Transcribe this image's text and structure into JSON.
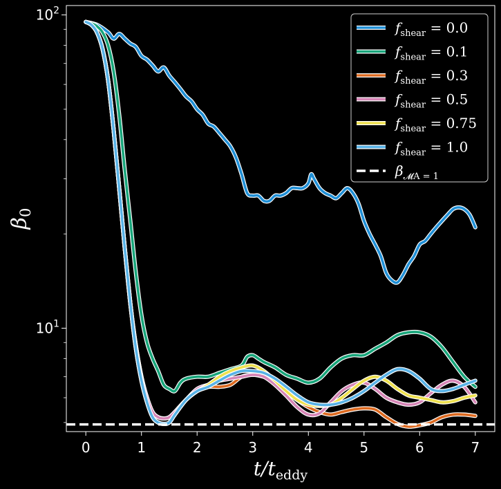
{
  "chart_data": {
    "type": "line",
    "xlabel_main": "t/t",
    "xlabel_sub": "eddy",
    "ylabel_main": "β",
    "ylabel_sub": "0",
    "xlim": [
      -0.35,
      7.35
    ],
    "ylim_log10": [
      0.67,
      2.03
    ],
    "yscale": "log",
    "grid": false,
    "legend_placement": "top-right",
    "x_ticks": [
      0,
      1,
      2,
      3,
      4,
      5,
      6,
      7
    ],
    "x_tick_labels": [
      "0",
      "1",
      "2",
      "3",
      "4",
      "5",
      "6",
      "7"
    ],
    "y_ticks": [
      10,
      100
    ],
    "y_tick_labels": [
      {
        "base": "10",
        "exp": "1"
      },
      {
        "base": "10",
        "exp": "2"
      }
    ],
    "y_minor_ticks": [
      5,
      6,
      7,
      8,
      9,
      20,
      30,
      40,
      50,
      60,
      70,
      80,
      90
    ],
    "series": [
      {
        "name": "f_shear = 0.0",
        "label_main": "f",
        "label_sub": "shear",
        "label_value": " = 0.0",
        "color": "#1f8fd6",
        "points": [
          [
            0,
            95
          ],
          [
            0.2,
            93
          ],
          [
            0.4,
            88
          ],
          [
            0.5,
            84
          ],
          [
            0.6,
            87
          ],
          [
            0.7,
            84
          ],
          [
            0.8,
            81
          ],
          [
            0.9,
            79
          ],
          [
            1.0,
            74
          ],
          [
            1.1,
            72
          ],
          [
            1.2,
            69
          ],
          [
            1.3,
            66
          ],
          [
            1.4,
            68
          ],
          [
            1.5,
            64
          ],
          [
            1.6,
            61
          ],
          [
            1.7,
            58
          ],
          [
            1.8,
            55
          ],
          [
            1.9,
            53
          ],
          [
            2.0,
            50
          ],
          [
            2.1,
            48
          ],
          [
            2.2,
            45
          ],
          [
            2.3,
            44
          ],
          [
            2.4,
            42
          ],
          [
            2.5,
            40
          ],
          [
            2.6,
            38
          ],
          [
            2.7,
            35
          ],
          [
            2.8,
            31
          ],
          [
            2.9,
            27
          ],
          [
            3.0,
            26.5
          ],
          [
            3.1,
            26.5
          ],
          [
            3.2,
            25.5
          ],
          [
            3.3,
            25.5
          ],
          [
            3.4,
            26.5
          ],
          [
            3.5,
            26.5
          ],
          [
            3.6,
            27
          ],
          [
            3.7,
            28
          ],
          [
            3.8,
            28
          ],
          [
            3.9,
            28
          ],
          [
            4.0,
            29
          ],
          [
            4.05,
            31
          ],
          [
            4.1,
            30
          ],
          [
            4.2,
            28
          ],
          [
            4.3,
            27
          ],
          [
            4.4,
            26.5
          ],
          [
            4.5,
            26
          ],
          [
            4.6,
            27
          ],
          [
            4.7,
            28
          ],
          [
            4.8,
            27
          ],
          [
            4.9,
            25
          ],
          [
            5.0,
            22
          ],
          [
            5.1,
            20
          ],
          [
            5.2,
            18.5
          ],
          [
            5.3,
            17
          ],
          [
            5.4,
            15
          ],
          [
            5.5,
            14.2
          ],
          [
            5.6,
            14.0
          ],
          [
            5.7,
            14.8
          ],
          [
            5.8,
            16
          ],
          [
            5.9,
            17
          ],
          [
            6.0,
            18.5
          ],
          [
            6.1,
            19
          ],
          [
            6.2,
            20
          ],
          [
            6.3,
            21
          ],
          [
            6.4,
            22
          ],
          [
            6.5,
            23
          ],
          [
            6.6,
            24
          ],
          [
            6.7,
            24.3
          ],
          [
            6.8,
            24
          ],
          [
            6.9,
            23
          ],
          [
            7.0,
            21
          ]
        ]
      },
      {
        "name": "f_shear = 0.1",
        "label_main": "f",
        "label_sub": "shear",
        "label_value": " = 0.1",
        "color": "#18a57a",
        "points": [
          [
            0,
            95
          ],
          [
            0.1,
            94
          ],
          [
            0.2,
            92
          ],
          [
            0.3,
            88
          ],
          [
            0.4,
            80
          ],
          [
            0.5,
            66
          ],
          [
            0.6,
            48
          ],
          [
            0.7,
            32
          ],
          [
            0.8,
            22
          ],
          [
            0.9,
            15
          ],
          [
            1.0,
            11
          ],
          [
            1.1,
            9
          ],
          [
            1.2,
            8.0
          ],
          [
            1.3,
            7.3
          ],
          [
            1.4,
            6.6
          ],
          [
            1.5,
            6.4
          ],
          [
            1.6,
            6.3
          ],
          [
            1.7,
            6.7
          ],
          [
            1.8,
            6.9
          ],
          [
            2.0,
            7.0
          ],
          [
            2.2,
            7.0
          ],
          [
            2.4,
            7.2
          ],
          [
            2.6,
            7.4
          ],
          [
            2.8,
            7.6
          ],
          [
            2.9,
            8.1
          ],
          [
            3.0,
            8.2
          ],
          [
            3.1,
            8.0
          ],
          [
            3.2,
            7.8
          ],
          [
            3.4,
            7.5
          ],
          [
            3.6,
            7.1
          ],
          [
            3.8,
            6.9
          ],
          [
            4.0,
            6.7
          ],
          [
            4.2,
            6.9
          ],
          [
            4.4,
            7.5
          ],
          [
            4.6,
            8.0
          ],
          [
            4.8,
            8.2
          ],
          [
            5.0,
            8.2
          ],
          [
            5.2,
            8.6
          ],
          [
            5.4,
            9.0
          ],
          [
            5.6,
            9.5
          ],
          [
            5.8,
            9.7
          ],
          [
            6.0,
            9.7
          ],
          [
            6.2,
            9.4
          ],
          [
            6.4,
            8.7
          ],
          [
            6.6,
            7.8
          ],
          [
            6.8,
            7.0
          ],
          [
            7.0,
            6.5
          ]
        ]
      },
      {
        "name": "f_shear = 0.3",
        "label_main": "f",
        "label_sub": "shear",
        "label_value": " = 0.3",
        "color": "#dd6a20",
        "points": [
          [
            0,
            95
          ],
          [
            0.1,
            93
          ],
          [
            0.2,
            88
          ],
          [
            0.3,
            78
          ],
          [
            0.4,
            62
          ],
          [
            0.5,
            43
          ],
          [
            0.6,
            28
          ],
          [
            0.7,
            18
          ],
          [
            0.8,
            12
          ],
          [
            0.9,
            8.8
          ],
          [
            1.0,
            7.0
          ],
          [
            1.1,
            6.0
          ],
          [
            1.2,
            5.4
          ],
          [
            1.3,
            5.2
          ],
          [
            1.4,
            5.15
          ],
          [
            1.5,
            5.2
          ],
          [
            1.6,
            5.4
          ],
          [
            1.8,
            5.9
          ],
          [
            2.0,
            6.3
          ],
          [
            2.2,
            6.5
          ],
          [
            2.4,
            6.5
          ],
          [
            2.6,
            6.6
          ],
          [
            2.8,
            7.0
          ],
          [
            3.0,
            7.1
          ],
          [
            3.2,
            7.0
          ],
          [
            3.4,
            6.8
          ],
          [
            3.6,
            6.3
          ],
          [
            3.8,
            5.9
          ],
          [
            4.0,
            5.6
          ],
          [
            4.2,
            5.4
          ],
          [
            4.4,
            5.3
          ],
          [
            4.6,
            5.4
          ],
          [
            4.8,
            5.5
          ],
          [
            5.0,
            5.55
          ],
          [
            5.2,
            5.5
          ],
          [
            5.4,
            5.2
          ],
          [
            5.6,
            4.95
          ],
          [
            5.8,
            4.85
          ],
          [
            6.0,
            4.9
          ],
          [
            6.2,
            5.0
          ],
          [
            6.4,
            5.2
          ],
          [
            6.6,
            5.3
          ],
          [
            6.8,
            5.3
          ],
          [
            7.0,
            5.25
          ]
        ]
      },
      {
        "name": "f_shear = 0.5",
        "label_main": "f",
        "label_sub": "shear",
        "label_value": " = 0.5",
        "color": "#d685b6",
        "points": [
          [
            0,
            95
          ],
          [
            0.1,
            93
          ],
          [
            0.2,
            88
          ],
          [
            0.3,
            78
          ],
          [
            0.4,
            62
          ],
          [
            0.5,
            43
          ],
          [
            0.6,
            28
          ],
          [
            0.7,
            18
          ],
          [
            0.8,
            12
          ],
          [
            0.9,
            8.8
          ],
          [
            1.0,
            7.0
          ],
          [
            1.1,
            6.0
          ],
          [
            1.2,
            5.4
          ],
          [
            1.3,
            5.2
          ],
          [
            1.4,
            5.15
          ],
          [
            1.5,
            5.2
          ],
          [
            1.6,
            5.4
          ],
          [
            1.8,
            5.9
          ],
          [
            2.0,
            6.4
          ],
          [
            2.2,
            6.6
          ],
          [
            2.4,
            6.8
          ],
          [
            2.6,
            6.9
          ],
          [
            2.8,
            7.0
          ],
          [
            3.0,
            7.1
          ],
          [
            3.2,
            7.0
          ],
          [
            3.4,
            6.6
          ],
          [
            3.6,
            6.1
          ],
          [
            3.8,
            5.6
          ],
          [
            4.0,
            5.3
          ],
          [
            4.2,
            5.35
          ],
          [
            4.4,
            5.8
          ],
          [
            4.6,
            6.3
          ],
          [
            4.8,
            6.6
          ],
          [
            5.0,
            6.7
          ],
          [
            5.2,
            6.4
          ],
          [
            5.4,
            6.0
          ],
          [
            5.6,
            5.8
          ],
          [
            5.8,
            5.7
          ],
          [
            6.0,
            5.8
          ],
          [
            6.2,
            6.2
          ],
          [
            6.4,
            6.6
          ],
          [
            6.6,
            6.8
          ],
          [
            6.8,
            6.5
          ],
          [
            7.0,
            5.8
          ]
        ]
      },
      {
        "name": "f_shear = 0.75",
        "label_main": "f",
        "label_sub": "shear",
        "label_value": " = 0.75",
        "color": "#efe14f",
        "points": [
          [
            0,
            95
          ],
          [
            0.1,
            93
          ],
          [
            0.2,
            88
          ],
          [
            0.3,
            78
          ],
          [
            0.4,
            62
          ],
          [
            0.5,
            43
          ],
          [
            0.6,
            28
          ],
          [
            0.7,
            18
          ],
          [
            0.8,
            12
          ],
          [
            0.9,
            8.6
          ],
          [
            1.0,
            6.8
          ],
          [
            1.1,
            5.8
          ],
          [
            1.2,
            5.2
          ],
          [
            1.3,
            5.0
          ],
          [
            1.4,
            4.95
          ],
          [
            1.5,
            5.0
          ],
          [
            1.6,
            5.3
          ],
          [
            1.8,
            5.9
          ],
          [
            2.0,
            6.3
          ],
          [
            2.2,
            6.6
          ],
          [
            2.4,
            7.0
          ],
          [
            2.6,
            7.3
          ],
          [
            2.8,
            7.5
          ],
          [
            3.0,
            7.6
          ],
          [
            3.2,
            7.3
          ],
          [
            3.4,
            6.8
          ],
          [
            3.6,
            6.3
          ],
          [
            3.8,
            5.9
          ],
          [
            4.0,
            5.7
          ],
          [
            4.2,
            5.65
          ],
          [
            4.4,
            5.7
          ],
          [
            4.6,
            6.0
          ],
          [
            4.8,
            6.4
          ],
          [
            5.0,
            6.8
          ],
          [
            5.2,
            7.0
          ],
          [
            5.4,
            6.8
          ],
          [
            5.6,
            6.4
          ],
          [
            5.8,
            6.1
          ],
          [
            6.0,
            6.0
          ],
          [
            6.2,
            5.9
          ],
          [
            6.4,
            5.8
          ],
          [
            6.6,
            5.85
          ],
          [
            6.8,
            6.0
          ],
          [
            7.0,
            6.1
          ]
        ]
      },
      {
        "name": "f_shear = 1.0",
        "label_main": "f",
        "label_sub": "shear",
        "label_value": " = 1.0",
        "color": "#58b2e6",
        "points": [
          [
            0,
            95
          ],
          [
            0.1,
            93
          ],
          [
            0.2,
            88
          ],
          [
            0.3,
            78
          ],
          [
            0.4,
            62
          ],
          [
            0.5,
            43
          ],
          [
            0.6,
            28
          ],
          [
            0.7,
            18
          ],
          [
            0.8,
            12
          ],
          [
            0.9,
            8.6
          ],
          [
            1.0,
            6.8
          ],
          [
            1.1,
            5.8
          ],
          [
            1.2,
            5.2
          ],
          [
            1.3,
            5.0
          ],
          [
            1.4,
            4.95
          ],
          [
            1.5,
            5.0
          ],
          [
            1.6,
            5.3
          ],
          [
            1.8,
            5.9
          ],
          [
            2.0,
            6.3
          ],
          [
            2.2,
            6.5
          ],
          [
            2.4,
            6.8
          ],
          [
            2.6,
            7.1
          ],
          [
            2.8,
            7.3
          ],
          [
            3.0,
            7.3
          ],
          [
            3.2,
            7.2
          ],
          [
            3.4,
            6.9
          ],
          [
            3.6,
            6.5
          ],
          [
            3.8,
            6.1
          ],
          [
            4.0,
            5.8
          ],
          [
            4.2,
            5.7
          ],
          [
            4.4,
            5.7
          ],
          [
            4.6,
            5.8
          ],
          [
            4.8,
            6.0
          ],
          [
            5.0,
            6.3
          ],
          [
            5.2,
            6.7
          ],
          [
            5.4,
            7.1
          ],
          [
            5.6,
            7.4
          ],
          [
            5.8,
            7.3
          ],
          [
            6.0,
            6.9
          ],
          [
            6.2,
            6.4
          ],
          [
            6.4,
            6.3
          ],
          [
            6.6,
            6.4
          ],
          [
            6.8,
            6.6
          ],
          [
            7.0,
            6.8
          ]
        ]
      }
    ],
    "reference_line": {
      "name": "β_MA=1",
      "label_main": "β",
      "label_sub": "𝓜A = 1",
      "y": 4.93,
      "color": "#ffffff",
      "style": "dashed"
    }
  }
}
